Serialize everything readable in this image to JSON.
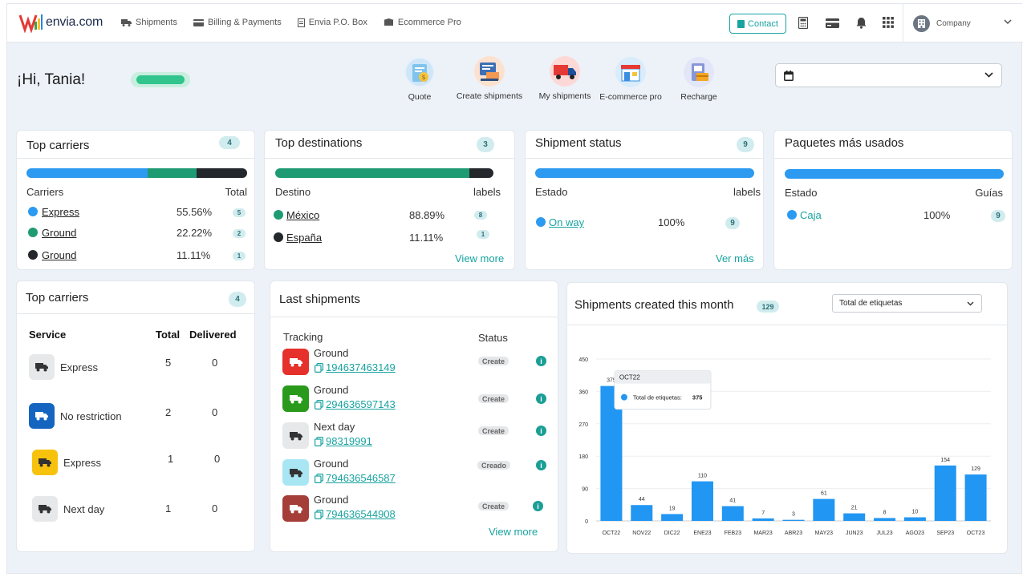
{
  "nav": {
    "brand": "envia.com",
    "links": [
      {
        "label": "Shipments",
        "icon": "truck-icon"
      },
      {
        "label": "Billing & Payments",
        "icon": "card-icon"
      },
      {
        "label": "Envia P.O. Box",
        "icon": "document-icon"
      },
      {
        "label": "Ecommerce Pro",
        "icon": "box-icon"
      }
    ],
    "contact_label": "Contact",
    "icons": [
      "calculator-icon",
      "card-icon",
      "bell-icon",
      "apps-grid-icon"
    ],
    "company_label": "Company"
  },
  "header": {
    "greeting": "¡Hi, Tania!",
    "quick_actions": [
      {
        "label": "Quote",
        "icon": "quote-icon"
      },
      {
        "label": "Create shipments",
        "icon": "create-shipments-icon"
      },
      {
        "label": "My shipments",
        "icon": "truck-icon"
      },
      {
        "label": "E-commerce pro",
        "icon": "store-icon"
      },
      {
        "label": "Recharge",
        "icon": "recharge-icon"
      }
    ],
    "date_filter_value": ""
  },
  "top_carriers": {
    "title": "Top carriers",
    "count": "4",
    "col_left": "Carriers",
    "col_right": "Total",
    "rows": [
      {
        "name": "Express",
        "percent": "55.56%",
        "count": "5",
        "color": "#2c9af0"
      },
      {
        "name": "Ground",
        "percent": "22.22%",
        "count": "2",
        "color": "#1f9b74"
      },
      {
        "name": "Ground",
        "percent": "11.11%",
        "count": "1",
        "color": "#24272b"
      }
    ]
  },
  "top_destinations": {
    "title": "Top destinations",
    "count": "3",
    "col_left": "Destino",
    "col_right": "labels",
    "rows": [
      {
        "name": "México",
        "percent": "88.89%",
        "count": "8",
        "color": "#1f9b74"
      },
      {
        "name": "España",
        "percent": "11.11%",
        "count": "1",
        "color": "#24272b"
      }
    ],
    "view_more": "View more"
  },
  "shipment_status": {
    "title": "Shipment status",
    "count": "9",
    "col_left": "Estado",
    "col_right": "labels",
    "rows": [
      {
        "name": "On way",
        "percent": "100%",
        "count": "9",
        "color": "#2c9af0"
      }
    ],
    "view_more": "Ver más"
  },
  "packages": {
    "title": "Paquetes más usados",
    "col_left": "Estado",
    "col_right": "Guías",
    "rows": [
      {
        "name": "Caja",
        "percent": "100%",
        "count": "9",
        "color": "#2c9af0"
      }
    ]
  },
  "top_services": {
    "title": "Top carriers",
    "count": "4",
    "columns": [
      "Service",
      "Total",
      "Delivered"
    ],
    "rows": [
      {
        "service": "Express",
        "total": "5",
        "delivered": "0",
        "icon_bg": "#e6e8ea",
        "icon": "truck-icon"
      },
      {
        "service": "No restriction",
        "total": "2",
        "delivered": "0",
        "icon_bg": "#1565c0",
        "icon": "truck-icon"
      },
      {
        "service": "Express",
        "total": "1",
        "delivered": "0",
        "icon_bg": "#f7c20c",
        "icon": "truck-icon"
      },
      {
        "service": "Next day",
        "total": "1",
        "delivered": "0",
        "icon_bg": "#e6e8ea",
        "icon": "truck-icon"
      }
    ]
  },
  "last_shipments": {
    "title": "Last shipments",
    "col_tracking": "Tracking",
    "col_status": "Status",
    "rows": [
      {
        "service": "Ground",
        "tracking": "194637463149",
        "status": "Create",
        "icon_bg": "#e5302b"
      },
      {
        "service": "Ground",
        "tracking": "294636597143",
        "status": "Create",
        "icon_bg": "#2a9a1d"
      },
      {
        "service": "Next day",
        "tracking": "98319991",
        "status": "Create",
        "icon_bg": "#e6e8ea"
      },
      {
        "service": "Ground",
        "tracking": "794636546587",
        "status": "Creado",
        "icon_bg": "#a9e6f4"
      },
      {
        "service": "Ground",
        "tracking": "794636544908",
        "status": "Create",
        "icon_bg": "#a53e38"
      }
    ],
    "view_more": "View more"
  },
  "monthly": {
    "title": "Shipments created this month",
    "count": "129",
    "filter_value": "Total de etiquetas",
    "tooltip": {
      "month": "OCT22",
      "series": "Total de etiquetas:",
      "value": "375"
    }
  },
  "chart_data": {
    "type": "bar",
    "categories": [
      "OCT22",
      "NOV22",
      "DIC22",
      "ENE23",
      "FEB23",
      "MAR23",
      "ABR23",
      "MAY23",
      "JUN23",
      "JUL23",
      "AGO23",
      "SEP23",
      "OCT23"
    ],
    "values": [
      375,
      44,
      19,
      110,
      41,
      7,
      3,
      61,
      21,
      8,
      10,
      154,
      129
    ],
    "yticks": [
      0,
      90,
      180,
      270,
      360,
      450
    ],
    "ylim": [
      0,
      450
    ],
    "series": [
      {
        "name": "Total de etiquetas",
        "values": [
          375,
          44,
          19,
          110,
          41,
          7,
          3,
          61,
          21,
          8,
          10,
          154,
          129
        ]
      }
    ],
    "color": "#2196f3",
    "grid": true
  }
}
